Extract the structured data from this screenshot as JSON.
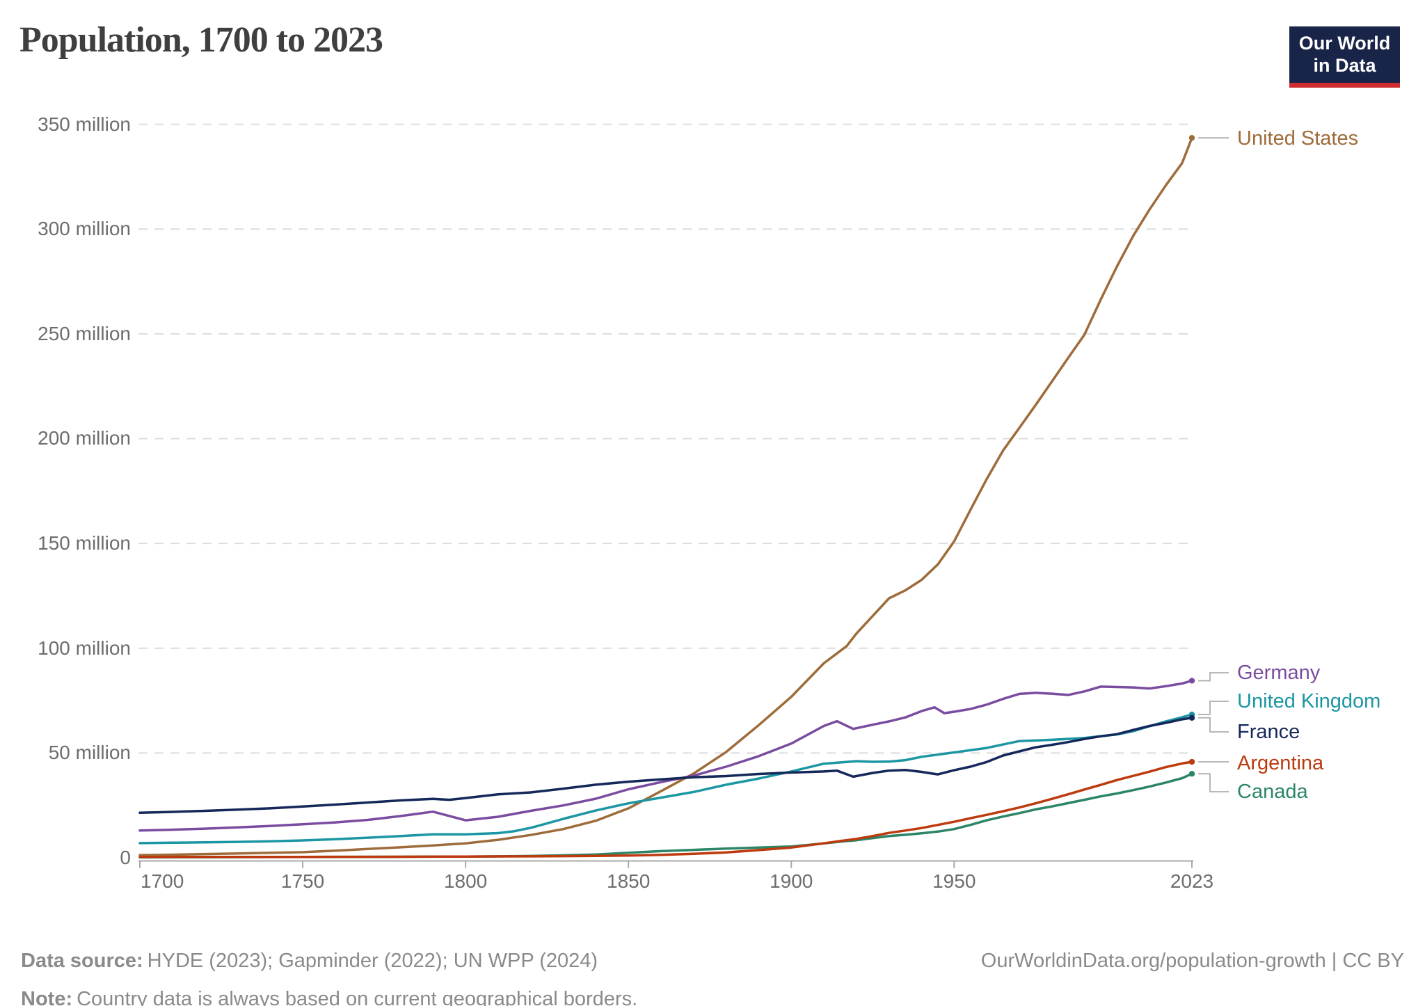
{
  "header": {
    "title": "Population, 1700 to 2023"
  },
  "logo": {
    "line1": "Our World",
    "line2": "in Data",
    "bg_color": "#182448",
    "bar_color": "#CD2D30"
  },
  "footer": {
    "source_label": "Data source:",
    "source_text": "HYDE (2023); Gapminder (2022); UN WPP (2024)",
    "note_label": "Note:",
    "note_text": "Country data is always based on current geographical borders.",
    "link_text": "OurWorldinData.org/population-growth | CC BY"
  },
  "chart_data": {
    "type": "line",
    "title": "Population, 1700 to 2023",
    "unit": "million people",
    "grid": true,
    "legend_position": "right",
    "x_axis": {
      "range": [
        1700,
        2023
      ],
      "ticks": [
        {
          "label": "1700",
          "year": 1700
        },
        {
          "label": "1750",
          "year": 1750
        },
        {
          "label": "1800",
          "year": 1800
        },
        {
          "label": "1850",
          "year": 1850
        },
        {
          "label": "1900",
          "year": 1900
        },
        {
          "label": "1950",
          "year": 1950
        },
        {
          "label": "2023",
          "year": 2023
        }
      ]
    },
    "y_axis": {
      "range_millions": [
        0,
        350
      ],
      "ticks": [
        {
          "label": "0",
          "value": 0
        },
        {
          "label": "50 million",
          "value": 50
        },
        {
          "label": "100 million",
          "value": 100
        },
        {
          "label": "150 million",
          "value": 150
        },
        {
          "label": "200 million",
          "value": 200
        },
        {
          "label": "250 million",
          "value": 250
        },
        {
          "label": "300 million",
          "value": 300
        },
        {
          "label": "350 million",
          "value": 350
        }
      ]
    },
    "series": [
      {
        "name": "United States",
        "color": "#9D6C3A",
        "points": [
          [
            1700,
            1.3
          ],
          [
            1710,
            1.5
          ],
          [
            1720,
            1.8
          ],
          [
            1730,
            2.1
          ],
          [
            1740,
            2.4
          ],
          [
            1750,
            2.7
          ],
          [
            1760,
            3.4
          ],
          [
            1770,
            4.2
          ],
          [
            1780,
            5.0
          ],
          [
            1790,
            5.9
          ],
          [
            1800,
            6.9
          ],
          [
            1810,
            8.6
          ],
          [
            1820,
            10.9
          ],
          [
            1830,
            13.7
          ],
          [
            1840,
            17.7
          ],
          [
            1850,
            23.6
          ],
          [
            1860,
            31.8
          ],
          [
            1870,
            40.2
          ],
          [
            1880,
            50.5
          ],
          [
            1890,
            63.3
          ],
          [
            1900,
            76.8
          ],
          [
            1910,
            92.8
          ],
          [
            1917,
            101.0
          ],
          [
            1920,
            107.0
          ],
          [
            1930,
            123.8
          ],
          [
            1935,
            127.6
          ],
          [
            1940,
            132.6
          ],
          [
            1945,
            140.0
          ],
          [
            1950,
            151.0
          ],
          [
            1955,
            166.0
          ],
          [
            1960,
            180.7
          ],
          [
            1965,
            194.3
          ],
          [
            1970,
            205.1
          ],
          [
            1975,
            216.0
          ],
          [
            1980,
            227.2
          ],
          [
            1985,
            238.5
          ],
          [
            1990,
            249.6
          ],
          [
            1995,
            266.3
          ],
          [
            2000,
            282.2
          ],
          [
            2005,
            296.8
          ],
          [
            2010,
            309.3
          ],
          [
            2015,
            320.9
          ],
          [
            2020,
            331.5
          ],
          [
            2023,
            343.5
          ]
        ]
      },
      {
        "name": "Germany",
        "color": "#7A4CA0",
        "points": [
          [
            1700,
            13.0
          ],
          [
            1710,
            13.4
          ],
          [
            1720,
            13.9
          ],
          [
            1730,
            14.5
          ],
          [
            1740,
            15.2
          ],
          [
            1750,
            16.0
          ],
          [
            1760,
            16.9
          ],
          [
            1770,
            18.1
          ],
          [
            1780,
            19.9
          ],
          [
            1790,
            22.0
          ],
          [
            1800,
            17.9
          ],
          [
            1810,
            19.6
          ],
          [
            1820,
            22.4
          ],
          [
            1830,
            25.0
          ],
          [
            1840,
            28.2
          ],
          [
            1850,
            32.7
          ],
          [
            1860,
            36.1
          ],
          [
            1870,
            39.2
          ],
          [
            1880,
            43.5
          ],
          [
            1890,
            48.5
          ],
          [
            1900,
            54.5
          ],
          [
            1910,
            62.9
          ],
          [
            1914,
            65.2
          ],
          [
            1919,
            61.5
          ],
          [
            1925,
            63.5
          ],
          [
            1930,
            65.1
          ],
          [
            1935,
            67.0
          ],
          [
            1940,
            70.0
          ],
          [
            1944,
            71.8
          ],
          [
            1947,
            69.0
          ],
          [
            1950,
            69.7
          ],
          [
            1955,
            71.0
          ],
          [
            1960,
            73.1
          ],
          [
            1965,
            75.8
          ],
          [
            1970,
            78.2
          ],
          [
            1975,
            78.7
          ],
          [
            1980,
            78.3
          ],
          [
            1985,
            77.7
          ],
          [
            1990,
            79.4
          ],
          [
            1995,
            81.7
          ],
          [
            2000,
            81.5
          ],
          [
            2005,
            81.3
          ],
          [
            2010,
            80.8
          ],
          [
            2015,
            81.9
          ],
          [
            2020,
            83.2
          ],
          [
            2023,
            84.5
          ]
        ]
      },
      {
        "name": "United Kingdom",
        "color": "#1C96A3",
        "points": [
          [
            1700,
            7.0
          ],
          [
            1710,
            7.2
          ],
          [
            1720,
            7.4
          ],
          [
            1730,
            7.6
          ],
          [
            1740,
            7.9
          ],
          [
            1750,
            8.3
          ],
          [
            1760,
            8.9
          ],
          [
            1770,
            9.6
          ],
          [
            1780,
            10.4
          ],
          [
            1790,
            11.2
          ],
          [
            1800,
            11.2
          ],
          [
            1810,
            11.8
          ],
          [
            1815,
            12.7
          ],
          [
            1820,
            14.3
          ],
          [
            1825,
            16.4
          ],
          [
            1830,
            18.6
          ],
          [
            1840,
            22.6
          ],
          [
            1850,
            26.0
          ],
          [
            1860,
            28.7
          ],
          [
            1870,
            31.4
          ],
          [
            1880,
            34.9
          ],
          [
            1890,
            37.8
          ],
          [
            1900,
            41.2
          ],
          [
            1910,
            44.9
          ],
          [
            1920,
            46.1
          ],
          [
            1925,
            45.8
          ],
          [
            1930,
            45.9
          ],
          [
            1935,
            46.6
          ],
          [
            1940,
            48.2
          ],
          [
            1950,
            50.3
          ],
          [
            1960,
            52.4
          ],
          [
            1970,
            55.7
          ],
          [
            1980,
            56.3
          ],
          [
            1990,
            57.2
          ],
          [
            2000,
            58.9
          ],
          [
            2005,
            60.4
          ],
          [
            2010,
            62.8
          ],
          [
            2015,
            65.1
          ],
          [
            2020,
            67.1
          ],
          [
            2023,
            68.4
          ]
        ]
      },
      {
        "name": "France",
        "color": "#14285A",
        "points": [
          [
            1700,
            21.5
          ],
          [
            1710,
            21.9
          ],
          [
            1720,
            22.4
          ],
          [
            1730,
            23.0
          ],
          [
            1740,
            23.6
          ],
          [
            1750,
            24.5
          ],
          [
            1760,
            25.4
          ],
          [
            1770,
            26.4
          ],
          [
            1780,
            27.4
          ],
          [
            1790,
            28.1
          ],
          [
            1795,
            27.7
          ],
          [
            1800,
            28.5
          ],
          [
            1810,
            30.3
          ],
          [
            1820,
            31.2
          ],
          [
            1830,
            33.0
          ],
          [
            1840,
            34.9
          ],
          [
            1850,
            36.3
          ],
          [
            1860,
            37.4
          ],
          [
            1870,
            38.4
          ],
          [
            1880,
            39.0
          ],
          [
            1890,
            40.0
          ],
          [
            1900,
            40.7
          ],
          [
            1910,
            41.2
          ],
          [
            1914,
            41.6
          ],
          [
            1919,
            38.7
          ],
          [
            1925,
            40.5
          ],
          [
            1930,
            41.6
          ],
          [
            1935,
            41.9
          ],
          [
            1940,
            41.0
          ],
          [
            1945,
            39.8
          ],
          [
            1950,
            41.8
          ],
          [
            1955,
            43.5
          ],
          [
            1960,
            45.7
          ],
          [
            1965,
            48.8
          ],
          [
            1970,
            50.8
          ],
          [
            1975,
            52.7
          ],
          [
            1980,
            53.9
          ],
          [
            1985,
            55.2
          ],
          [
            1990,
            56.7
          ],
          [
            1995,
            58.0
          ],
          [
            2000,
            59.0
          ],
          [
            2005,
            61.0
          ],
          [
            2010,
            62.9
          ],
          [
            2015,
            64.4
          ],
          [
            2020,
            66.1
          ],
          [
            2023,
            66.8
          ]
        ]
      },
      {
        "name": "Argentina",
        "color": "#BD3A0F",
        "points": [
          [
            1700,
            0.4
          ],
          [
            1720,
            0.4
          ],
          [
            1740,
            0.4
          ],
          [
            1750,
            0.4
          ],
          [
            1760,
            0.45
          ],
          [
            1780,
            0.5
          ],
          [
            1800,
            0.6
          ],
          [
            1810,
            0.65
          ],
          [
            1820,
            0.7
          ],
          [
            1830,
            0.8
          ],
          [
            1840,
            0.9
          ],
          [
            1850,
            1.1
          ],
          [
            1860,
            1.4
          ],
          [
            1870,
            1.9
          ],
          [
            1880,
            2.6
          ],
          [
            1890,
            3.7
          ],
          [
            1900,
            4.9
          ],
          [
            1905,
            5.9
          ],
          [
            1910,
            6.9
          ],
          [
            1915,
            8.0
          ],
          [
            1920,
            9.0
          ],
          [
            1925,
            10.4
          ],
          [
            1930,
            11.9
          ],
          [
            1935,
            13.0
          ],
          [
            1940,
            14.2
          ],
          [
            1945,
            15.7
          ],
          [
            1950,
            17.2
          ],
          [
            1955,
            18.9
          ],
          [
            1960,
            20.5
          ],
          [
            1965,
            22.2
          ],
          [
            1970,
            24.0
          ],
          [
            1975,
            26.0
          ],
          [
            1980,
            28.1
          ],
          [
            1985,
            30.3
          ],
          [
            1990,
            32.6
          ],
          [
            1995,
            34.8
          ],
          [
            2000,
            37.1
          ],
          [
            2005,
            39.1
          ],
          [
            2010,
            41.1
          ],
          [
            2015,
            43.3
          ],
          [
            2020,
            45.0
          ],
          [
            2023,
            45.8
          ]
        ]
      },
      {
        "name": "Canada",
        "color": "#2B8566",
        "points": [
          [
            1700,
            0.25
          ],
          [
            1720,
            0.3
          ],
          [
            1740,
            0.35
          ],
          [
            1750,
            0.4
          ],
          [
            1760,
            0.45
          ],
          [
            1780,
            0.5
          ],
          [
            1800,
            0.6
          ],
          [
            1810,
            0.7
          ],
          [
            1820,
            0.85
          ],
          [
            1830,
            1.2
          ],
          [
            1840,
            1.6
          ],
          [
            1850,
            2.4
          ],
          [
            1860,
            3.2
          ],
          [
            1870,
            3.8
          ],
          [
            1880,
            4.4
          ],
          [
            1890,
            4.9
          ],
          [
            1900,
            5.4
          ],
          [
            1905,
            6.1
          ],
          [
            1910,
            6.9
          ],
          [
            1915,
            7.7
          ],
          [
            1920,
            8.4
          ],
          [
            1925,
            9.4
          ],
          [
            1930,
            10.4
          ],
          [
            1935,
            11.0
          ],
          [
            1940,
            11.7
          ],
          [
            1945,
            12.5
          ],
          [
            1950,
            13.7
          ],
          [
            1955,
            15.7
          ],
          [
            1960,
            17.9
          ],
          [
            1965,
            19.7
          ],
          [
            1970,
            21.3
          ],
          [
            1975,
            23.1
          ],
          [
            1980,
            24.5
          ],
          [
            1985,
            26.1
          ],
          [
            1990,
            27.7
          ],
          [
            1995,
            29.3
          ],
          [
            2000,
            30.7
          ],
          [
            2005,
            32.3
          ],
          [
            2010,
            34.0
          ],
          [
            2015,
            35.9
          ],
          [
            2020,
            38.0
          ],
          [
            2023,
            40.1
          ]
        ]
      }
    ]
  }
}
